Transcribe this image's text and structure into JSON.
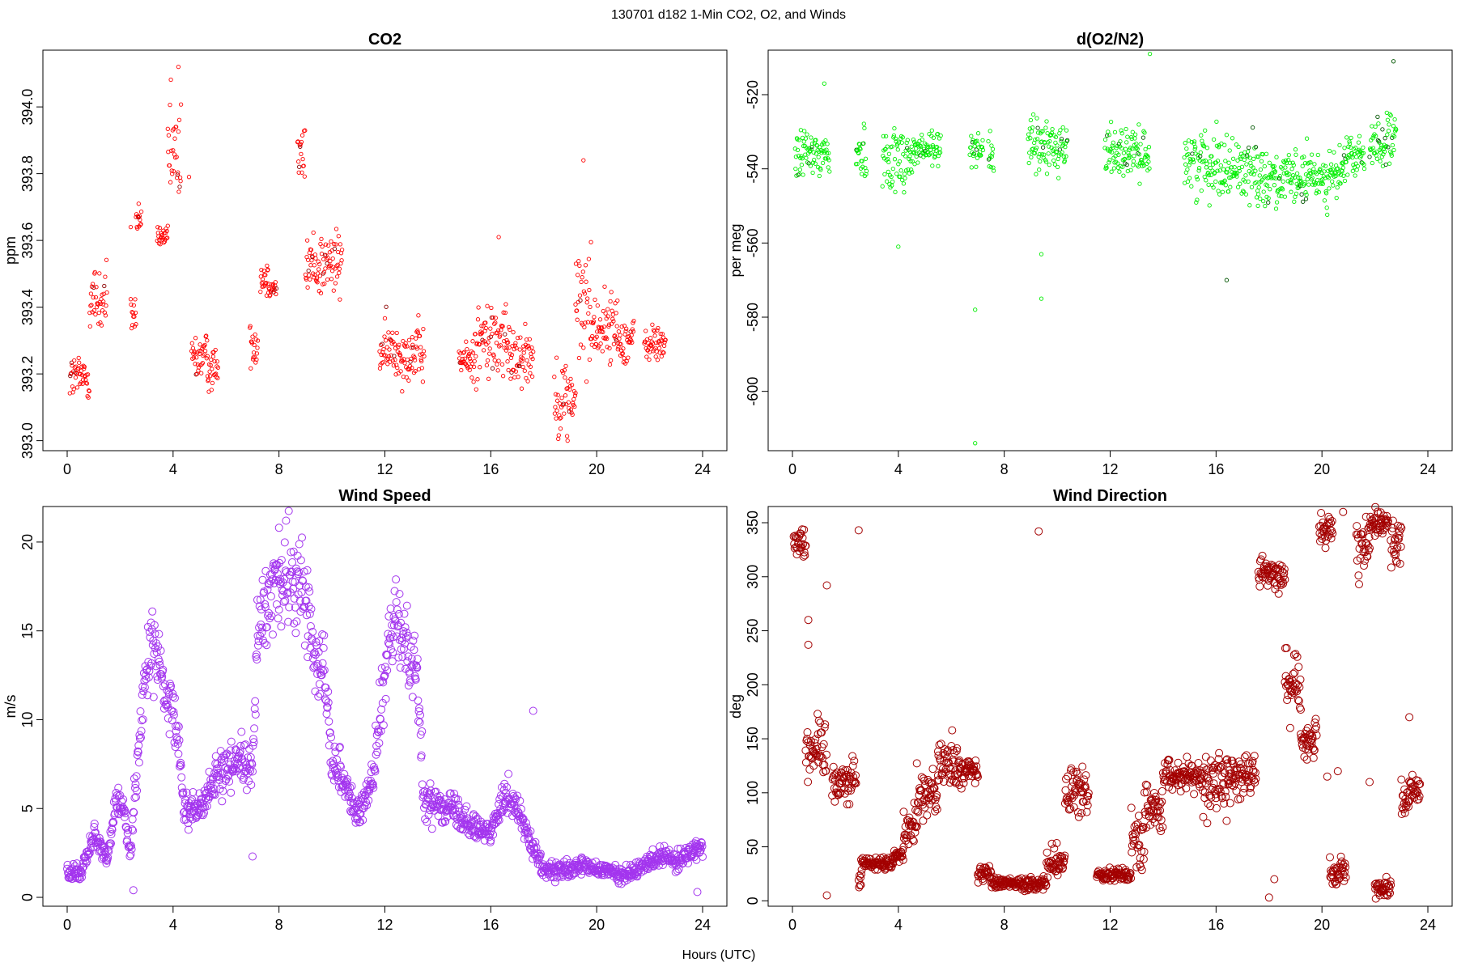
{
  "figure": {
    "title": "130701   d182   1-Min CO2, O2, and Winds",
    "xlabel": "Hours (UTC)"
  },
  "chart_data": [
    {
      "type": "scatter",
      "title": "CO2",
      "ylabel": "ppm",
      "xlim": [
        0,
        24
      ],
      "ylim": [
        392.97,
        394.17
      ],
      "xticks": [
        0,
        4,
        8,
        12,
        16,
        20,
        24
      ],
      "yticks": [
        "393.0",
        "393.2",
        "393.4",
        "393.6",
        "393.8",
        "394.0"
      ],
      "color": "#ff0000",
      "highlight_color": "#8b0000",
      "marker_size": "small",
      "segments": [
        [
          0.1,
          0.85,
          393.19,
          0.05
        ],
        [
          0.85,
          1.5,
          393.42,
          0.08
        ],
        [
          2.4,
          2.6,
          393.38,
          0.04
        ],
        [
          2.6,
          2.8,
          393.66,
          0.03
        ],
        [
          3.4,
          3.8,
          393.61,
          0.02
        ],
        [
          3.8,
          4.3,
          393.85,
          0.12
        ],
        [
          4.7,
          5.3,
          393.25,
          0.05
        ],
        [
          5.3,
          5.7,
          393.22,
          0.05
        ],
        [
          6.9,
          7.2,
          393.29,
          0.04
        ],
        [
          7.3,
          7.6,
          393.49,
          0.04
        ],
        [
          7.6,
          7.9,
          393.46,
          0.02
        ],
        [
          8.7,
          9.0,
          393.85,
          0.06
        ],
        [
          9.0,
          10.4,
          393.53,
          0.07
        ],
        [
          11.8,
          12.6,
          393.27,
          0.06
        ],
        [
          12.6,
          13.5,
          393.26,
          0.06
        ],
        [
          14.8,
          15.4,
          393.24,
          0.04
        ],
        [
          15.4,
          16.6,
          393.3,
          0.09
        ],
        [
          16.6,
          17.6,
          393.26,
          0.06
        ],
        [
          18.4,
          19.2,
          393.13,
          0.08
        ],
        [
          19.2,
          19.8,
          393.4,
          0.12
        ],
        [
          19.8,
          20.8,
          393.34,
          0.07
        ],
        [
          20.8,
          21.4,
          393.3,
          0.05
        ],
        [
          21.8,
          22.6,
          393.29,
          0.04
        ]
      ],
      "outliers": [
        [
          4.2,
          394.12
        ],
        [
          19.5,
          393.84
        ],
        [
          16.3,
          393.61
        ],
        [
          18.9,
          393.0
        ],
        [
          2.7,
          393.71
        ],
        [
          4.6,
          393.79
        ],
        [
          2.4,
          393.64
        ]
      ]
    },
    {
      "type": "scatter",
      "title": "d(O2/N2)",
      "ylabel": "per meg",
      "xlim": [
        0,
        24
      ],
      "ylim": [
        -616,
        -508
      ],
      "xticks": [
        0,
        4,
        8,
        12,
        16,
        20,
        24
      ],
      "yticks": [
        "-600",
        "-580",
        "-560",
        "-540",
        "-520"
      ],
      "color": "#00ee00",
      "highlight_color": "#005500",
      "marker_size": "small",
      "segments": [
        [
          0.1,
          1.4,
          -536,
          5
        ],
        [
          2.4,
          2.8,
          -536,
          5
        ],
        [
          3.4,
          4.6,
          -537,
          6
        ],
        [
          4.6,
          5.6,
          -535,
          4
        ],
        [
          6.7,
          7.2,
          -534,
          3
        ],
        [
          7.4,
          7.6,
          -536,
          4
        ],
        [
          8.9,
          10.4,
          -534,
          5
        ],
        [
          11.8,
          12.5,
          -535,
          5
        ],
        [
          12.5,
          13.5,
          -536,
          4
        ],
        [
          14.8,
          16.2,
          -538,
          6
        ],
        [
          16.2,
          17.6,
          -540,
          6
        ],
        [
          17.6,
          18.2,
          -542,
          5
        ],
        [
          18.2,
          19.4,
          -543,
          5
        ],
        [
          19.4,
          20.8,
          -542,
          5
        ],
        [
          20.8,
          21.6,
          -537,
          4
        ],
        [
          21.8,
          22.8,
          -533,
          5
        ]
      ],
      "outliers": [
        [
          6.9,
          -614
        ],
        [
          6.9,
          -578
        ],
        [
          9.4,
          -575
        ],
        [
          9.4,
          -563
        ],
        [
          16.4,
          -570
        ],
        [
          13.5,
          -509
        ],
        [
          1.2,
          -517
        ],
        [
          4.0,
          -561
        ],
        [
          22.7,
          -511
        ]
      ]
    },
    {
      "type": "scatter",
      "title": "Wind Speed",
      "ylabel": "m/s",
      "xlim": [
        0,
        24
      ],
      "ylim": [
        -0.5,
        22
      ],
      "xticks": [
        0,
        4,
        8,
        12,
        16,
        20,
        24
      ],
      "yticks": [
        "0",
        "5",
        "10",
        "15",
        "20"
      ],
      "color": "#a335ee",
      "marker_size": "large",
      "profile": [
        [
          0.0,
          1.5
        ],
        [
          0.5,
          1.3
        ],
        [
          1.0,
          3.5
        ],
        [
          1.5,
          2.0
        ],
        [
          1.9,
          6.0
        ],
        [
          2.1,
          5.0
        ],
        [
          2.4,
          2.5
        ],
        [
          2.6,
          7.0
        ],
        [
          3.0,
          13.0
        ],
        [
          3.3,
          14.5
        ],
        [
          3.7,
          11.0
        ],
        [
          4.0,
          10.0
        ],
        [
          4.2,
          9.0
        ],
        [
          4.4,
          5.0
        ],
        [
          5.0,
          5.0
        ],
        [
          5.5,
          6.5
        ],
        [
          6.0,
          7.0
        ],
        [
          6.5,
          8.0
        ],
        [
          7.0,
          7.0
        ],
        [
          7.2,
          15.0
        ],
        [
          7.8,
          17.5
        ],
        [
          8.5,
          18.0
        ],
        [
          9.0,
          17.0
        ],
        [
          9.3,
          14.0
        ],
        [
          9.7,
          13.0
        ],
        [
          10.0,
          8.0
        ],
        [
          10.5,
          6.5
        ],
        [
          11.0,
          4.5
        ],
        [
          11.5,
          6.5
        ],
        [
          11.9,
          11.0
        ],
        [
          12.3,
          15.5
        ],
        [
          12.8,
          14.5
        ],
        [
          13.2,
          13.0
        ],
        [
          13.5,
          5.0
        ],
        [
          14.0,
          5.5
        ],
        [
          14.5,
          5.0
        ],
        [
          15.0,
          4.5
        ],
        [
          15.5,
          4.0
        ],
        [
          16.0,
          3.5
        ],
        [
          16.5,
          6.0
        ],
        [
          17.0,
          5.0
        ],
        [
          17.5,
          3.0
        ],
        [
          18.0,
          1.5
        ],
        [
          19.0,
          1.5
        ],
        [
          19.5,
          1.8
        ],
        [
          20.0,
          1.5
        ],
        [
          20.5,
          1.5
        ],
        [
          21.0,
          1.2
        ],
        [
          21.5,
          1.5
        ],
        [
          22.0,
          2.0
        ],
        [
          22.5,
          2.5
        ],
        [
          23.0,
          2.0
        ],
        [
          23.5,
          2.5
        ],
        [
          24.0,
          3.0
        ]
      ],
      "outliers": [
        [
          8.0,
          20.8
        ],
        [
          7.0,
          2.3
        ],
        [
          17.6,
          10.5
        ],
        [
          2.5,
          0.4
        ],
        [
          23.8,
          0.3
        ]
      ]
    },
    {
      "type": "scatter",
      "title": "Wind Direction",
      "ylabel": "deg",
      "xlim": [
        0,
        24
      ],
      "ylim": [
        -5,
        365
      ],
      "xticks": [
        0,
        4,
        8,
        12,
        16,
        20,
        24
      ],
      "yticks": [
        "0",
        "50",
        "100",
        "150",
        "200",
        "250",
        "300",
        "350"
      ],
      "color": "#a30000",
      "marker_size": "large",
      "segments": [
        [
          0.05,
          0.5,
          333,
          12
        ],
        [
          0.5,
          1.3,
          140,
          20
        ],
        [
          1.5,
          2.4,
          112,
          15
        ],
        [
          2.5,
          2.6,
          20,
          6
        ],
        [
          2.6,
          3.8,
          35,
          4
        ],
        [
          3.8,
          4.2,
          42,
          5
        ],
        [
          4.2,
          4.7,
          70,
          12
        ],
        [
          4.7,
          5.5,
          100,
          15
        ],
        [
          5.5,
          6.3,
          125,
          15
        ],
        [
          6.3,
          7.0,
          120,
          12
        ],
        [
          7.0,
          7.5,
          25,
          5
        ],
        [
          7.5,
          8.7,
          17,
          4
        ],
        [
          8.7,
          9.6,
          15,
          4
        ],
        [
          9.6,
          10.3,
          35,
          12
        ],
        [
          10.3,
          11.2,
          100,
          15
        ],
        [
          11.5,
          12.8,
          25,
          4
        ],
        [
          12.8,
          13.3,
          55,
          20
        ],
        [
          13.3,
          14.0,
          85,
          15
        ],
        [
          14.0,
          15.5,
          115,
          10
        ],
        [
          15.5,
          16.5,
          110,
          20
        ],
        [
          16.5,
          17.5,
          115,
          12
        ],
        [
          17.6,
          18.2,
          305,
          10
        ],
        [
          18.2,
          18.6,
          305,
          12
        ],
        [
          18.6,
          19.2,
          200,
          20
        ],
        [
          19.2,
          19.8,
          150,
          12
        ],
        [
          19.9,
          20.4,
          340,
          12
        ],
        [
          20.3,
          20.9,
          25,
          12
        ],
        [
          21.3,
          21.8,
          325,
          20
        ],
        [
          21.8,
          22.5,
          350,
          8
        ],
        [
          22.0,
          22.6,
          12,
          6
        ],
        [
          22.6,
          23.0,
          330,
          15
        ],
        [
          23.0,
          23.3,
          95,
          12
        ],
        [
          23.3,
          23.7,
          105,
          10
        ]
      ],
      "outliers": [
        [
          9.3,
          342
        ],
        [
          2.5,
          343
        ],
        [
          1.3,
          292
        ],
        [
          20.2,
          115
        ],
        [
          21.8,
          110
        ],
        [
          18.0,
          3
        ],
        [
          18.2,
          20
        ],
        [
          20.8,
          360
        ],
        [
          0.6,
          260
        ],
        [
          0.6,
          237
        ],
        [
          1.3,
          5
        ],
        [
          20.6,
          120
        ],
        [
          23.3,
          170
        ],
        [
          18.8,
          160
        ]
      ]
    }
  ]
}
